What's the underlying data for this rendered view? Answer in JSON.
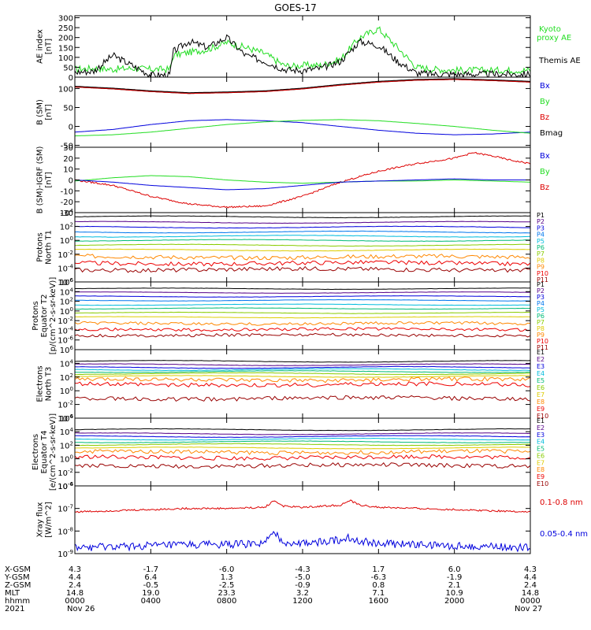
{
  "title": "GOES-17",
  "colors": {
    "axis": "#000000",
    "black": "#000000",
    "green": "#22dd22",
    "blue": "#0000dd",
    "red": "#dd0000",
    "dark_red": "#aa0000"
  },
  "panels": [
    {
      "id": "ae",
      "ylabel": [
        "AE index",
        "[nT]"
      ],
      "scale": "linear",
      "ylim": [
        0,
        310
      ],
      "ticks": [
        "300",
        "250",
        "200",
        "150",
        "100",
        "50",
        "0"
      ],
      "tick_values": [
        300,
        250,
        200,
        150,
        100,
        50,
        0
      ],
      "legend": [
        {
          "text": "Kyoto",
          "color": "#22dd22"
        },
        {
          "text": "proxy AE",
          "color": "#22dd22"
        },
        {
          "text": "Themis AE",
          "color": "#000000"
        }
      ],
      "series": [
        {
          "name": "Kyoto proxy AE",
          "color": "#22dd22",
          "x": [
            0,
            1,
            2,
            3,
            4,
            5,
            5.2,
            6,
            7,
            8,
            9,
            10,
            11,
            11.5,
            12,
            13,
            14,
            15,
            16,
            17,
            18,
            19,
            20,
            21,
            22,
            23,
            24
          ],
          "y": [
            40,
            45,
            40,
            45,
            40,
            40,
            110,
            125,
            140,
            175,
            150,
            120,
            60,
            55,
            60,
            60,
            90,
            200,
            245,
            150,
            50,
            40,
            35,
            35,
            35,
            35,
            35
          ]
        },
        {
          "name": "Themis AE",
          "color": "#000000",
          "x": [
            0,
            1,
            2,
            3,
            4,
            5,
            5.2,
            6,
            7,
            8,
            9,
            10,
            11,
            11.5,
            12,
            13,
            14,
            15,
            16,
            17,
            18,
            19,
            20,
            21,
            22,
            23,
            24
          ],
          "y": [
            25,
            30,
            110,
            60,
            10,
            10,
            130,
            180,
            150,
            200,
            110,
            80,
            40,
            35,
            35,
            45,
            80,
            180,
            160,
            80,
            20,
            15,
            15,
            15,
            15,
            15,
            15
          ]
        }
      ]
    },
    {
      "id": "bsm",
      "ylabel": [
        "B (SM)",
        "[nT]"
      ],
      "scale": "linear",
      "ylim": [
        -55,
        130
      ],
      "ticks": [
        "100",
        "50",
        "0",
        "-50"
      ],
      "tick_values": [
        100,
        50,
        0,
        -50
      ],
      "legend": [
        {
          "text": "Bx",
          "color": "#0000dd"
        },
        {
          "text": "By",
          "color": "#22dd22"
        },
        {
          "text": "Bz",
          "color": "#dd0000"
        },
        {
          "text": "Bmag",
          "color": "#000000"
        }
      ],
      "series": [
        {
          "name": "Bmag",
          "color": "#000000",
          "x": [
            0,
            2,
            4,
            6,
            8,
            10,
            12,
            14,
            16,
            18,
            20,
            22,
            24
          ],
          "y": [
            105,
            100,
            93,
            88,
            90,
            93,
            100,
            110,
            118,
            123,
            125,
            122,
            118
          ]
        },
        {
          "name": "Bz",
          "color": "#dd0000",
          "x": [
            0,
            2,
            4,
            6,
            8,
            10,
            12,
            14,
            16,
            18,
            20,
            22,
            24
          ],
          "y": [
            104,
            99,
            92,
            87,
            89,
            92,
            99,
            109,
            117,
            122,
            124,
            121,
            117
          ]
        },
        {
          "name": "Bx",
          "color": "#0000dd",
          "x": [
            0,
            2,
            4,
            6,
            8,
            10,
            12,
            14,
            16,
            18,
            20,
            22,
            24
          ],
          "y": [
            -15,
            -8,
            5,
            15,
            18,
            15,
            10,
            0,
            -10,
            -18,
            -22,
            -20,
            -15
          ]
        },
        {
          "name": "By",
          "color": "#22dd22",
          "x": [
            0,
            2,
            4,
            6,
            8,
            10,
            12,
            14,
            16,
            18,
            20,
            22,
            24
          ],
          "y": [
            -25,
            -22,
            -15,
            -5,
            5,
            12,
            16,
            18,
            15,
            8,
            0,
            -10,
            -18
          ]
        }
      ]
    },
    {
      "id": "bigrf",
      "ylabel": [
        "B (SM)-IGRF (SM)",
        "[nT]"
      ],
      "scale": "linear",
      "ylim": [
        -30,
        30
      ],
      "ticks": [
        "30",
        "20",
        "10",
        "0",
        "-10",
        "-20",
        "-30"
      ],
      "tick_values": [
        30,
        20,
        10,
        0,
        -10,
        -20,
        -30
      ],
      "legend": [
        {
          "text": "Bx",
          "color": "#0000dd"
        },
        {
          "text": "By",
          "color": "#22dd22"
        },
        {
          "text": "Bz",
          "color": "#dd0000"
        }
      ],
      "series": [
        {
          "name": "Bz",
          "color": "#dd0000",
          "x": [
            0,
            2,
            4,
            6,
            8,
            10,
            12,
            14,
            16,
            18,
            20,
            21,
            22,
            23,
            24
          ],
          "y": [
            0,
            -5,
            -15,
            -22,
            -25,
            -24,
            -15,
            -2,
            8,
            15,
            20,
            25,
            22,
            18,
            15
          ]
        },
        {
          "name": "By",
          "color": "#22dd22",
          "x": [
            0,
            2,
            4,
            6,
            8,
            10,
            12,
            14,
            16,
            18,
            20,
            22,
            24
          ],
          "y": [
            -1,
            2,
            4,
            3,
            0,
            -2,
            -3,
            -2,
            -1,
            -1,
            0,
            -1,
            -2
          ]
        },
        {
          "name": "Bx",
          "color": "#0000dd",
          "x": [
            0,
            2,
            4,
            6,
            8,
            10,
            12,
            14,
            16,
            18,
            20,
            22,
            24
          ],
          "y": [
            0,
            -2,
            -5,
            -7,
            -9,
            -8,
            -5,
            -2,
            -1,
            0,
            1,
            0,
            0
          ]
        }
      ]
    },
    {
      "id": "protons_t1",
      "ylabel": [
        "Protons",
        "North T1"
      ],
      "scale": "log",
      "ylim": [
        -6,
        4
      ],
      "ticks": [
        "10^4",
        "10^2",
        "10^0",
        "10^-2",
        "10^-4",
        "10^-6"
      ],
      "tick_values": [
        4,
        2,
        0,
        -2,
        -4,
        -6
      ],
      "legend": [
        {
          "text": "P1",
          "color": "#000000"
        },
        {
          "text": "P2",
          "color": "#550088"
        },
        {
          "text": "P3",
          "color": "#0000dd"
        },
        {
          "text": "P4",
          "color": "#0077ee"
        },
        {
          "text": "P5",
          "color": "#00bbdd"
        },
        {
          "text": "P6",
          "color": "#00bb77"
        },
        {
          "text": "P7",
          "color": "#88cc00"
        },
        {
          "text": "P8",
          "color": "#ddcc00"
        },
        {
          "text": "P9",
          "color": "#ff8800"
        },
        {
          "text": "P10",
          "color": "#ee0000"
        },
        {
          "text": "P11",
          "color": "#990000"
        }
      ],
      "levels": [
        3.4,
        2.6,
        1.9,
        1.2,
        0.6,
        0.0,
        -0.7,
        -1.4,
        -2.4,
        -3.3,
        -4.2
      ]
    },
    {
      "id": "protons_t2",
      "ylabel": [
        "Protons",
        "Equator T2",
        "[p/(cm^2-s-sr-keV)]"
      ],
      "scale": "log",
      "ylim": [
        -8,
        6
      ],
      "ticks": [
        "10^6",
        "10^4",
        "10^2",
        "10^0",
        "10^-2",
        "10^-4",
        "10^-6"
      ],
      "tick_values": [
        6,
        4,
        2,
        0,
        -2,
        -4,
        -6
      ],
      "legend": [
        {
          "text": "P1",
          "color": "#000000"
        },
        {
          "text": "P2",
          "color": "#550088"
        },
        {
          "text": "P3",
          "color": "#0000dd"
        },
        {
          "text": "P4",
          "color": "#0077ee"
        },
        {
          "text": "P5",
          "color": "#00bbdd"
        },
        {
          "text": "P6",
          "color": "#00bb77"
        },
        {
          "text": "P7",
          "color": "#88cc00"
        },
        {
          "text": "P8",
          "color": "#ddcc00"
        },
        {
          "text": "P9",
          "color": "#ff8800"
        },
        {
          "text": "P10",
          "color": "#ee0000"
        },
        {
          "text": "P11",
          "color": "#990000"
        }
      ],
      "levels": [
        4.6,
        3.8,
        3.0,
        2.2,
        1.3,
        0.5,
        -0.4,
        -1.3,
        -2.6,
        -3.8,
        -5.0
      ]
    },
    {
      "id": "electrons_t3",
      "ylabel": [
        "Electrons",
        "North T3"
      ],
      "scale": "log",
      "ylim": [
        -4,
        6
      ],
      "ticks": [
        "10^6",
        "10^4",
        "10^2",
        "10^0",
        "10^-2",
        "10^-4"
      ],
      "tick_values": [
        6,
        4,
        2,
        0,
        -2,
        -4
      ],
      "legend": [
        {
          "text": "E1",
          "color": "#000000"
        },
        {
          "text": "E2",
          "color": "#550088"
        },
        {
          "text": "E3",
          "color": "#0000dd"
        },
        {
          "text": "E4",
          "color": "#00bbdd"
        },
        {
          "text": "E5",
          "color": "#00bb77"
        },
        {
          "text": "E6",
          "color": "#88cc00"
        },
        {
          "text": "E7",
          "color": "#ddcc00"
        },
        {
          "text": "E8",
          "color": "#ff8800"
        },
        {
          "text": "E9",
          "color": "#ee0000"
        },
        {
          "text": "E10",
          "color": "#990000"
        }
      ],
      "levels": [
        4.3,
        3.8,
        3.4,
        3.1,
        2.8,
        2.5,
        2.1,
        1.6,
        0.9,
        -1.1
      ]
    },
    {
      "id": "electrons_t4",
      "ylabel": [
        "Electrons",
        "Equator T4",
        "[e/(cm^2-s-sr-keV)]"
      ],
      "scale": "log",
      "ylim": [
        -4,
        6
      ],
      "ticks": [
        "10^6",
        "10^4",
        "10^2",
        "10^0",
        "10^-2",
        "10^-4"
      ],
      "tick_values": [
        6,
        4,
        2,
        0,
        -2,
        -4
      ],
      "legend": [
        {
          "text": "E1",
          "color": "#000000"
        },
        {
          "text": "E2",
          "color": "#550088"
        },
        {
          "text": "E3",
          "color": "#0000dd"
        },
        {
          "text": "E4",
          "color": "#00bbdd"
        },
        {
          "text": "E5",
          "color": "#00bb77"
        },
        {
          "text": "E6",
          "color": "#88cc00"
        },
        {
          "text": "E7",
          "color": "#ddcc00"
        },
        {
          "text": "E8",
          "color": "#ff8800"
        },
        {
          "text": "E9",
          "color": "#ee0000"
        },
        {
          "text": "E10",
          "color": "#990000"
        }
      ],
      "levels": [
        4.3,
        3.7,
        3.3,
        2.9,
        2.5,
        2.1,
        1.6,
        1.0,
        0.2,
        -1.0
      ]
    },
    {
      "id": "xray",
      "ylabel": [
        "Xray flux",
        "[W/m^2]"
      ],
      "scale": "log",
      "ylim": [
        -9,
        -6
      ],
      "ticks": [
        "10^-6",
        "10^-7",
        "10^-8",
        "10^-9"
      ],
      "tick_values": [
        -6,
        -7,
        -8,
        -9
      ],
      "legend": [
        {
          "text": "0.1-0.8 nm",
          "color": "#dd0000"
        },
        {
          "text": "0.05-0.4 nm",
          "color": "#0000dd"
        }
      ],
      "series": [
        {
          "name": "0.1-0.8 nm",
          "color": "#dd0000",
          "x": [
            0,
            2,
            4,
            6,
            8,
            10,
            10.5,
            11,
            12,
            14,
            14.5,
            15,
            16,
            18,
            20,
            22,
            24
          ],
          "y": [
            -7.15,
            -7.1,
            -7.05,
            -7.0,
            -7.0,
            -6.95,
            -6.65,
            -6.9,
            -6.95,
            -6.85,
            -6.65,
            -6.85,
            -6.95,
            -7.0,
            -7.05,
            -7.1,
            -7.15
          ]
        },
        {
          "name": "0.05-0.4 nm",
          "color": "#0000dd",
          "x": [
            0,
            2,
            4,
            6,
            8,
            10,
            10.5,
            11,
            12,
            14,
            14.5,
            15,
            16,
            18,
            20,
            22,
            24
          ],
          "y": [
            -8.75,
            -8.7,
            -8.65,
            -8.6,
            -8.6,
            -8.55,
            -8.1,
            -8.5,
            -8.55,
            -8.4,
            -8.3,
            -8.45,
            -8.55,
            -8.6,
            -8.65,
            -8.7,
            -8.75
          ]
        }
      ]
    }
  ],
  "chart_data": {
    "type": "line",
    "title": "GOES-17",
    "x_unit": "UT hours from 2021 Nov 26 0000",
    "xlim": [
      0,
      24
    ],
    "x_ticks": [
      0,
      4,
      8,
      12,
      16,
      20,
      24
    ],
    "row_labels": [
      "X-GSM",
      "Y-GSM",
      "Z-GSM",
      "MLT",
      "hhmm",
      "2021"
    ],
    "rows": [
      [
        "4.3",
        "-1.7",
        "-6.0",
        "-4.3",
        "1.7",
        "6.0",
        "4.3"
      ],
      [
        "4.4",
        "6.4",
        "1.3",
        "-5.0",
        "-6.3",
        "-1.9",
        "4.4"
      ],
      [
        "2.4",
        "-0.5",
        "-2.5",
        "-0.9",
        "0.8",
        "2.1",
        "2.4"
      ],
      [
        "14.8",
        "19.0",
        "23.3",
        "3.2",
        "7.1",
        "10.9",
        "14.8"
      ],
      [
        "0000",
        "0400",
        "0800",
        "1200",
        "1600",
        "2000",
        "0000"
      ],
      [
        "Nov 26",
        "",
        "",
        "",
        "",
        "",
        "Nov 27"
      ]
    ]
  }
}
